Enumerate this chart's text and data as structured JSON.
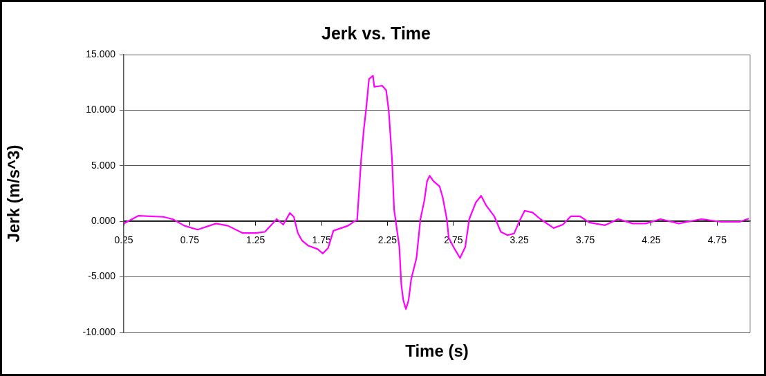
{
  "chart_data": {
    "type": "line",
    "title": "Jerk vs. Time",
    "xlabel": "Time (s)",
    "ylabel": "Jerk (m/s^3)",
    "x": [
      0.25,
      0.36,
      0.55,
      0.62,
      0.71,
      0.81,
      0.95,
      1.04,
      1.15,
      1.25,
      1.32,
      1.41,
      1.46,
      1.51,
      1.54,
      1.57,
      1.6,
      1.65,
      1.72,
      1.76,
      1.8,
      1.84,
      1.95,
      2.0,
      2.02,
      2.03,
      2.05,
      2.07,
      2.09,
      2.11,
      2.14,
      2.15,
      2.21,
      2.24,
      2.26,
      2.285,
      2.3,
      2.34,
      2.355,
      2.37,
      2.39,
      2.41,
      2.43,
      2.47,
      2.5,
      2.53,
      2.55,
      2.57,
      2.6,
      2.645,
      2.67,
      2.7,
      2.715,
      2.76,
      2.8,
      2.84,
      2.87,
      2.92,
      2.96,
      3.0,
      3.06,
      3.11,
      3.16,
      3.21,
      3.25,
      3.29,
      3.35,
      3.41,
      3.51,
      3.58,
      3.64,
      3.71,
      3.78,
      3.9,
      4.0,
      4.11,
      4.21,
      4.32,
      4.46,
      4.63,
      4.78,
      4.92,
      4.99
    ],
    "series": [
      {
        "color": "#ff00ff",
        "values": [
          -0.2,
          0.5,
          0.4,
          0.2,
          -0.4,
          -0.75,
          -0.2,
          -0.4,
          -1.05,
          -1.05,
          -0.95,
          0.2,
          -0.3,
          0.75,
          0.4,
          -1.05,
          -1.7,
          -2.2,
          -2.5,
          -2.9,
          -2.4,
          -0.85,
          -0.4,
          0,
          0.1,
          1.9,
          5.5,
          8.2,
          10.3,
          12.8,
          13.1,
          12.1,
          12.2,
          11.8,
          9.9,
          5.5,
          1.1,
          -2.3,
          -5.7,
          -7.1,
          -7.9,
          -7.1,
          -5.2,
          -3.3,
          0.2,
          1.9,
          3.6,
          4.1,
          3.6,
          3.15,
          2.1,
          0.2,
          -1.5,
          -2.5,
          -3.3,
          -2.3,
          0.2,
          1.7,
          2.3,
          1.4,
          0.45,
          -0.95,
          -1.25,
          -1.1,
          0,
          0.95,
          0.8,
          0.2,
          -0.6,
          -0.3,
          0.45,
          0.45,
          -0.1,
          -0.35,
          0.2,
          -0.2,
          -0.2,
          0.2,
          -0.2,
          0.2,
          -0.05,
          -0.05,
          0.25
        ]
      }
    ],
    "xlim": [
      0.25,
      5.0
    ],
    "xticks": [
      0.25,
      0.75,
      1.25,
      1.75,
      2.25,
      2.75,
      3.25,
      3.75,
      4.25,
      4.75
    ],
    "ylim": [
      -10,
      15
    ],
    "yticks": [
      {
        "value": -10,
        "label": "-10.000"
      },
      {
        "value": -5,
        "label": "-5.000"
      },
      {
        "value": 0,
        "label": "0.000"
      },
      {
        "value": 5,
        "label": "5.000"
      },
      {
        "value": 10,
        "label": "10.000"
      },
      {
        "value": 15,
        "label": "15.000"
      }
    ],
    "grid": "y",
    "marker": "none",
    "line_style": "solid"
  }
}
